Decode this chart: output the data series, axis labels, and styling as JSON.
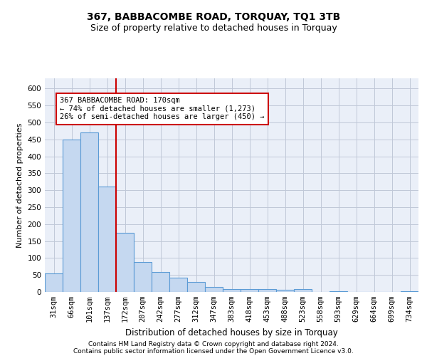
{
  "title": "367, BABBACOMBE ROAD, TORQUAY, TQ1 3TB",
  "subtitle": "Size of property relative to detached houses in Torquay",
  "xlabel": "Distribution of detached houses by size in Torquay",
  "ylabel": "Number of detached properties",
  "footer1": "Contains HM Land Registry data © Crown copyright and database right 2024.",
  "footer2": "Contains public sector information licensed under the Open Government Licence v3.0.",
  "categories": [
    "31sqm",
    "66sqm",
    "101sqm",
    "137sqm",
    "172sqm",
    "207sqm",
    "242sqm",
    "277sqm",
    "312sqm",
    "347sqm",
    "383sqm",
    "418sqm",
    "453sqm",
    "488sqm",
    "523sqm",
    "558sqm",
    "593sqm",
    "629sqm",
    "664sqm",
    "699sqm",
    "734sqm"
  ],
  "values": [
    54,
    450,
    470,
    310,
    175,
    88,
    58,
    42,
    30,
    15,
    9,
    8,
    8,
    6,
    8,
    0,
    3,
    0,
    0,
    0,
    3
  ],
  "bar_color": "#c5d8f0",
  "bar_edge_color": "#5b9bd5",
  "bar_edge_width": 0.8,
  "grid_color": "#c0c8d8",
  "background_color": "#eaeff8",
  "marker_color": "#cc0000",
  "annotation_text": "367 BABBACOMBE ROAD: 170sqm\n← 74% of detached houses are smaller (1,273)\n26% of semi-detached houses are larger (450) →",
  "annotation_box_color": "#ffffff",
  "annotation_box_edge_color": "#cc0000",
  "ylim": [
    0,
    630
  ],
  "yticks": [
    0,
    50,
    100,
    150,
    200,
    250,
    300,
    350,
    400,
    450,
    500,
    550,
    600
  ],
  "title_fontsize": 10,
  "subtitle_fontsize": 9,
  "xlabel_fontsize": 8.5,
  "ylabel_fontsize": 8,
  "tick_fontsize": 7.5,
  "annot_fontsize": 7.5,
  "footer_fontsize": 6.5
}
